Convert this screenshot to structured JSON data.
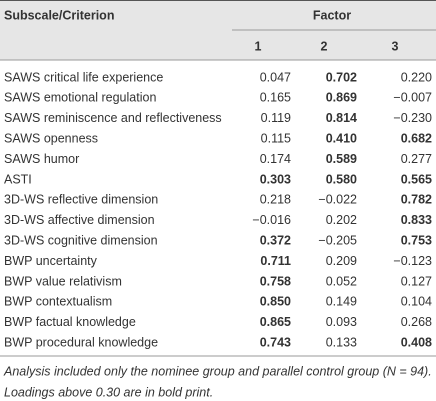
{
  "table": {
    "header": {
      "label": "Subscale/Criterion",
      "group": "Factor",
      "columns": [
        "1",
        "2",
        "3"
      ]
    },
    "rows": [
      {
        "label": "SAWS critical life experience",
        "cells": [
          "0.047",
          "0.702",
          "0.220"
        ],
        "bold": [
          false,
          true,
          false
        ]
      },
      {
        "label": "SAWS emotional regulation",
        "cells": [
          "0.165",
          "0.869",
          "−0.007"
        ],
        "bold": [
          false,
          true,
          false
        ]
      },
      {
        "label": "SAWS reminiscence and reflectiveness",
        "cells": [
          "0.119",
          "0.814",
          "−0.230"
        ],
        "bold": [
          false,
          true,
          false
        ]
      },
      {
        "label": "SAWS openness",
        "cells": [
          "0.115",
          "0.410",
          "0.682"
        ],
        "bold": [
          false,
          true,
          true
        ]
      },
      {
        "label": "SAWS humor",
        "cells": [
          "0.174",
          "0.589",
          "0.277"
        ],
        "bold": [
          false,
          true,
          false
        ]
      },
      {
        "label": "ASTI",
        "cells": [
          "0.303",
          "0.580",
          "0.565"
        ],
        "bold": [
          true,
          true,
          true
        ]
      },
      {
        "label": "3D-WS reflective dimension",
        "cells": [
          "0.218",
          "−0.022",
          "0.782"
        ],
        "bold": [
          false,
          false,
          true
        ]
      },
      {
        "label": "3D-WS affective dimension",
        "cells": [
          "−0.016",
          "0.202",
          "0.833"
        ],
        "bold": [
          false,
          false,
          true
        ]
      },
      {
        "label": "3D-WS cognitive dimension",
        "cells": [
          "0.372",
          "−0.205",
          "0.753"
        ],
        "bold": [
          true,
          false,
          true
        ]
      },
      {
        "label": "BWP uncertainty",
        "cells": [
          "0.711",
          "0.209",
          "−0.123"
        ],
        "bold": [
          true,
          false,
          false
        ]
      },
      {
        "label": "BWP value relativism",
        "cells": [
          "0.758",
          "0.052",
          "0.127"
        ],
        "bold": [
          true,
          false,
          false
        ]
      },
      {
        "label": "BWP contextualism",
        "cells": [
          "0.850",
          "0.149",
          "0.104"
        ],
        "bold": [
          true,
          false,
          false
        ]
      },
      {
        "label": "BWP factual knowledge",
        "cells": [
          "0.865",
          "0.093",
          "0.268"
        ],
        "bold": [
          true,
          false,
          false
        ]
      },
      {
        "label": "BWP procedural knowledge",
        "cells": [
          "0.743",
          "0.133",
          "0.408"
        ],
        "bold": [
          true,
          false,
          true
        ]
      }
    ],
    "note": [
      "Analysis included only the nominee group and parallel control group (N = 94).",
      "Loadings above 0.30 are in bold print."
    ]
  }
}
